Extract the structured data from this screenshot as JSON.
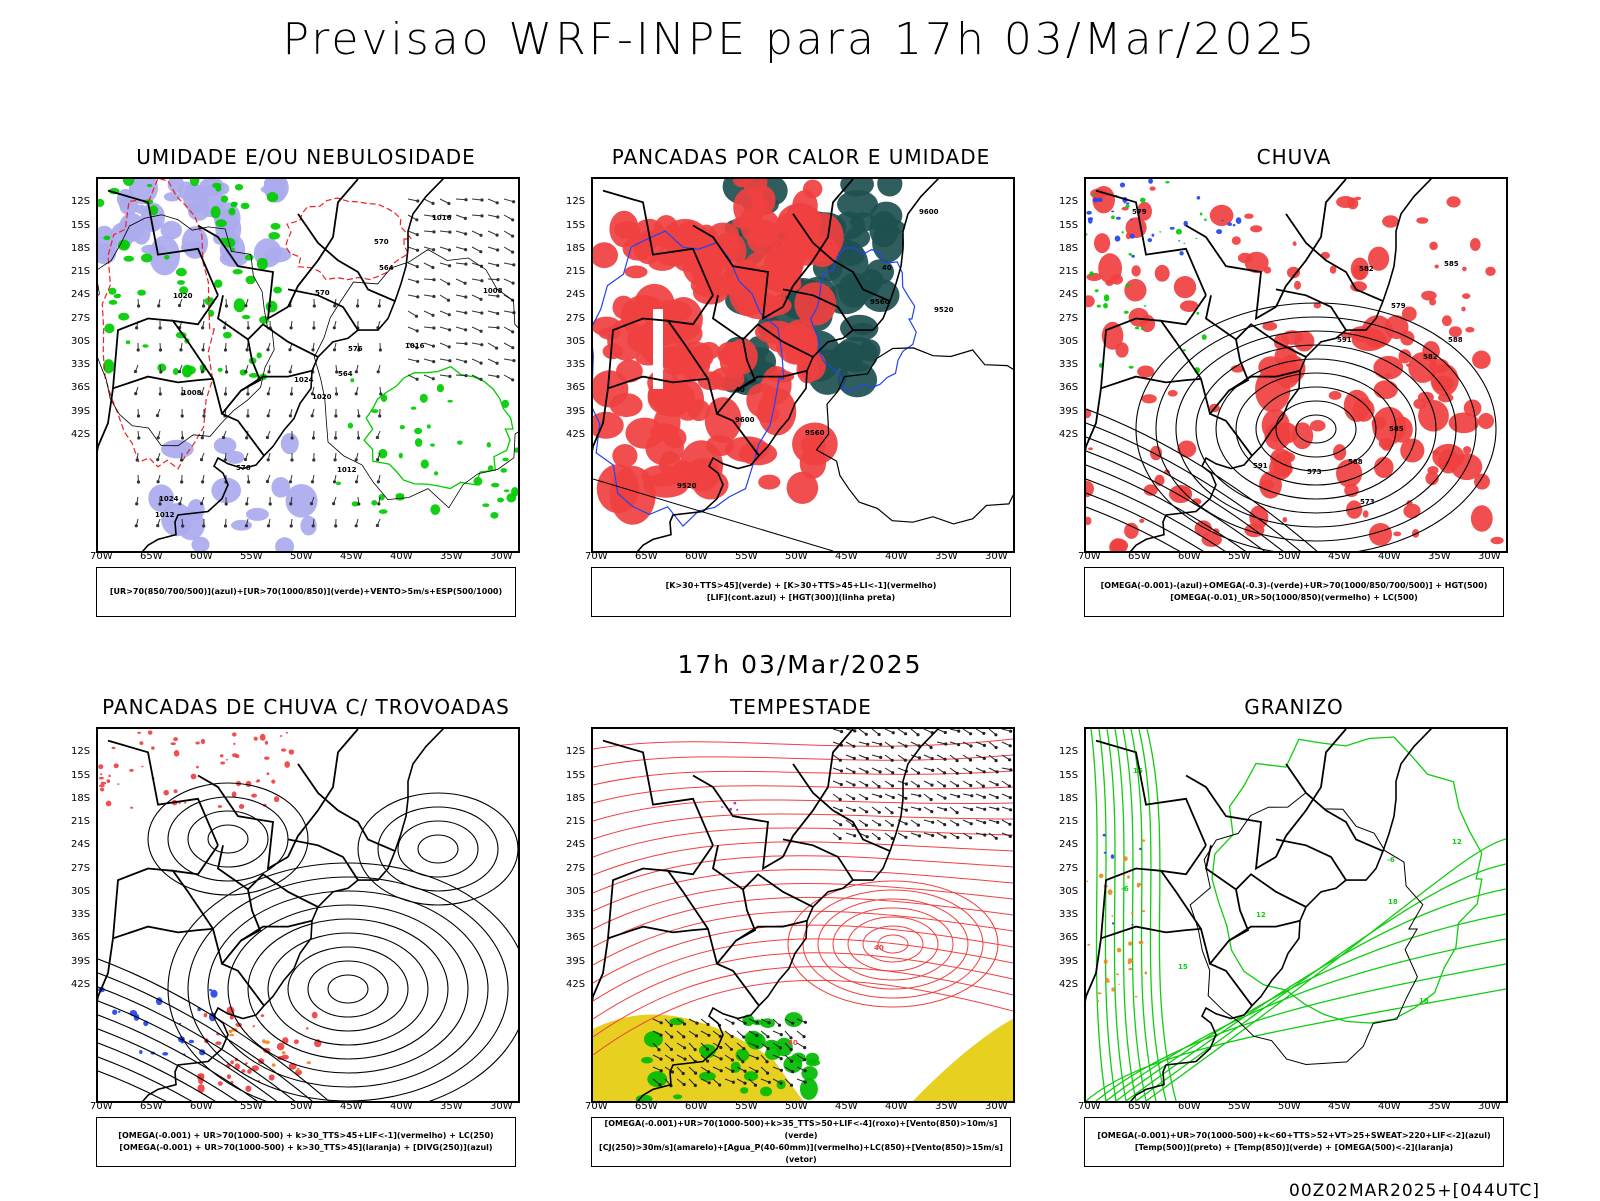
{
  "title": "Previsao WRF-INPE  para 17h 03/Mar/2025",
  "mid_title": "17h 03/Mar/2025",
  "footer": "00Z02MAR2025+[044UTC]",
  "lat_labels": [
    "12S",
    "15S",
    "18S",
    "21S",
    "24S",
    "27S",
    "30S",
    "33S",
    "36S",
    "39S",
    "42S"
  ],
  "lon_labels": [
    "70W",
    "65W",
    "60W",
    "55W",
    "50W",
    "45W",
    "40W",
    "35W",
    "30W"
  ],
  "panels": [
    {
      "title": "UMIDADE E/OU NEBULOSIDADE",
      "legend": [
        "[UR>70(850/700/500)](azul)+[UR>70(1000/850)](verde)+VENTO>5m/s+ESP(500/1000)"
      ],
      "contour_labels": [
        "1008",
        "1012",
        "1016",
        "1020",
        "1024",
        "576",
        "570",
        "564"
      ],
      "colors": {
        "high_rh": "#aaaaee",
        "low_rh": "#00cc00",
        "thickness": "#ee2222"
      }
    },
    {
      "title": "PANCADAS POR CALOR E UMIDADE",
      "legend": [
        "[K>30+TTS>45](verde) + [K>30+TTS>45+LI<-1](vermelho)",
        "[LIF](cont.azul) + [HGT(300)](linha preta)"
      ],
      "contour_labels": [
        "9600",
        "9520",
        "9560",
        "40"
      ],
      "colors": {
        "green": "#1e5050",
        "red": "#f04040",
        "lif": "#2244ee"
      }
    },
    {
      "title": "CHUVA",
      "legend": [
        "[OMEGA(-0.001)-(azul)+OMEGA(-0.3)-(verde)+UR>70(1000/850/700/500)] + HGT(500)",
        "[OMEGA(-0.01)_UR>50(1000/850)(vermelho) + LC(500)"
      ],
      "contour_labels": [
        "585",
        "588",
        "591",
        "579",
        "573",
        "582"
      ],
      "colors": {
        "rain": "#f04040",
        "omega_blue": "#2244ee",
        "omega_green": "#00cc00"
      }
    },
    {
      "title": "PANCADAS DE CHUVA C/ TROVOADAS",
      "legend": [
        "[OMEGA(-0.001) + UR>70(1000-500) + k>30_TTS>45+LIF<-1](vermelho) + LC(250)",
        "[OMEGA(-0.001) + UR>70(1000-500) + k>30_TTS>45](laranja) + [DIVG(250)](azul)"
      ],
      "contour_labels": [],
      "colors": {
        "red": "#f04040",
        "orange": "#ee8822",
        "blue": "#2244ee"
      }
    },
    {
      "title": "TEMPESTADE",
      "legend": [
        "[OMEGA(-0.001)+UR>70(1000-500)+k>35_TTS>50+LIF<-4](roxo)+[Vento(850)>10m/s](verde)",
        "[CJ(250)>30m/s](amarelo)+[Agua_P(40-60mm)](vermelho)+LC(850)+[Vento(850)>15m/s](vetor)"
      ],
      "contour_labels": [
        "40"
      ],
      "colors": {
        "yellow": "#e8d020",
        "green": "#00bb00",
        "red": "#f04040",
        "purple": "#aa22cc"
      }
    },
    {
      "title": "GRANIZO",
      "legend": [
        "[OMEGA(-0.001)+UR>70(1000-500)+k<60+TTS>52+VT>25+SWEAT>220+LIF<-2](azul)",
        "[Temp(500)](preto) + [Temp(850)](verde) + [OMEGA(500)<-2](laranja)"
      ],
      "contour_labels": [
        "18",
        "15",
        "12",
        "-6"
      ],
      "colors": {
        "green": "#11cc11",
        "orange": "#ee8822",
        "blue": "#2244ee"
      }
    }
  ]
}
